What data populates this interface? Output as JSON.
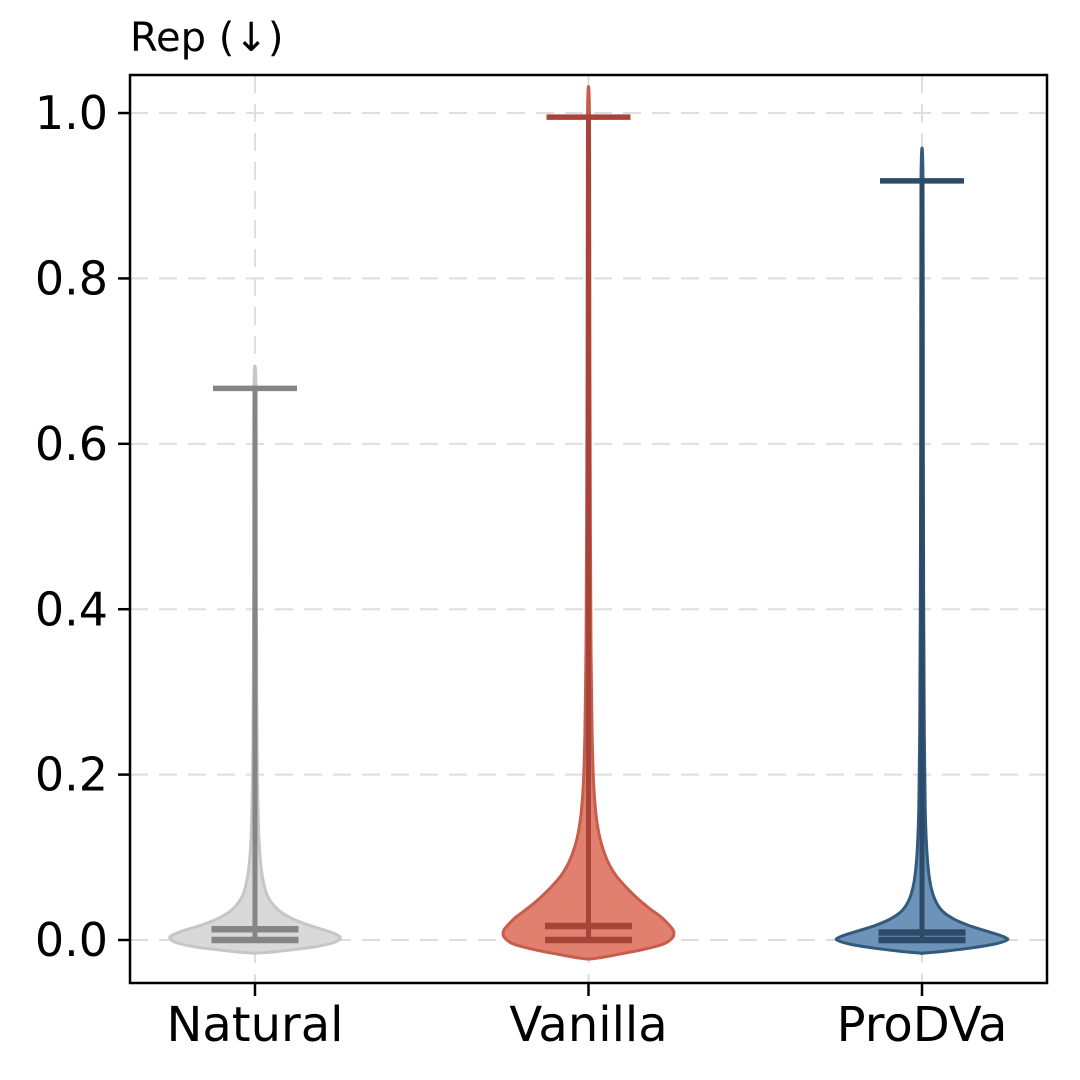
{
  "chart_data": {
    "type": "violin",
    "title": "Rep (↓)",
    "xlabel": "",
    "ylabel": "",
    "categories": [
      "Natural",
      "Vanilla",
      "ProDVa"
    ],
    "ylim": [
      -0.052,
      1.046
    ],
    "ytick_labels": [
      "0.0",
      "0.2",
      "0.4",
      "0.6",
      "0.8",
      "1.0"
    ],
    "ytick_values": [
      0.0,
      0.2,
      0.4,
      0.6,
      0.8,
      1.0
    ],
    "grid": {
      "show": true,
      "color": "#dedede",
      "dash": "18 11"
    },
    "frame_color": "#000000",
    "text_color": "#000000",
    "legend": {
      "show": false
    },
    "series": [
      {
        "name": "Natural",
        "fill_color": "#d9d9d9",
        "edge_color": "#c6c6c6",
        "stat_color": "#858585",
        "min": 0.0,
        "max": 0.667,
        "mean": 0.013,
        "median": 0.002,
        "profile": [
          [
            0.667,
            0.012
          ],
          [
            0.45,
            0.015
          ],
          [
            0.3,
            0.02
          ],
          [
            0.2,
            0.028
          ],
          [
            0.14,
            0.04
          ],
          [
            0.1,
            0.06
          ],
          [
            0.075,
            0.09
          ],
          [
            0.055,
            0.14
          ],
          [
            0.042,
            0.22
          ],
          [
            0.032,
            0.33
          ],
          [
            0.024,
            0.48
          ],
          [
            0.017,
            0.66
          ],
          [
            0.011,
            0.85
          ],
          [
            0.006,
            0.97
          ],
          [
            0.002,
            1.0
          ],
          [
            -0.003,
            0.93
          ],
          [
            -0.008,
            0.72
          ],
          [
            -0.012,
            0.42
          ],
          [
            -0.015,
            0.15
          ],
          [
            -0.016,
            0.0
          ]
        ]
      },
      {
        "name": "Vanilla",
        "fill_color": "#e2806f",
        "edge_color": "#c75d4d",
        "stat_color": "#a8433a",
        "min": 0.0,
        "max": 0.995,
        "mean": 0.017,
        "median": 0.002,
        "profile": [
          [
            0.995,
            0.012
          ],
          [
            0.7,
            0.016
          ],
          [
            0.5,
            0.022
          ],
          [
            0.35,
            0.03
          ],
          [
            0.25,
            0.042
          ],
          [
            0.19,
            0.06
          ],
          [
            0.155,
            0.085
          ],
          [
            0.13,
            0.12
          ],
          [
            0.11,
            0.17
          ],
          [
            0.092,
            0.24
          ],
          [
            0.077,
            0.33
          ],
          [
            0.063,
            0.45
          ],
          [
            0.05,
            0.58
          ],
          [
            0.038,
            0.72
          ],
          [
            0.028,
            0.85
          ],
          [
            0.019,
            0.94
          ],
          [
            0.011,
            1.0
          ],
          [
            0.003,
            0.99
          ],
          [
            -0.005,
            0.88
          ],
          [
            -0.012,
            0.62
          ],
          [
            -0.018,
            0.32
          ],
          [
            -0.022,
            0.1
          ],
          [
            -0.023,
            0.0
          ]
        ]
      },
      {
        "name": "ProDVa",
        "fill_color": "#6d93b8",
        "edge_color": "#335a7d",
        "stat_color": "#2d4b69",
        "min": 0.0,
        "max": 0.918,
        "mean": 0.009,
        "median": 0.002,
        "profile": [
          [
            0.918,
            0.012
          ],
          [
            0.6,
            0.015
          ],
          [
            0.4,
            0.02
          ],
          [
            0.25,
            0.027
          ],
          [
            0.16,
            0.038
          ],
          [
            0.11,
            0.055
          ],
          [
            0.08,
            0.08
          ],
          [
            0.06,
            0.115
          ],
          [
            0.045,
            0.17
          ],
          [
            0.034,
            0.25
          ],
          [
            0.025,
            0.38
          ],
          [
            0.018,
            0.54
          ],
          [
            0.012,
            0.72
          ],
          [
            0.007,
            0.88
          ],
          [
            0.003,
            0.98
          ],
          [
            0.0,
            1.0
          ],
          [
            -0.005,
            0.85
          ],
          [
            -0.01,
            0.55
          ],
          [
            -0.014,
            0.22
          ],
          [
            -0.016,
            0.0
          ]
        ]
      }
    ]
  }
}
